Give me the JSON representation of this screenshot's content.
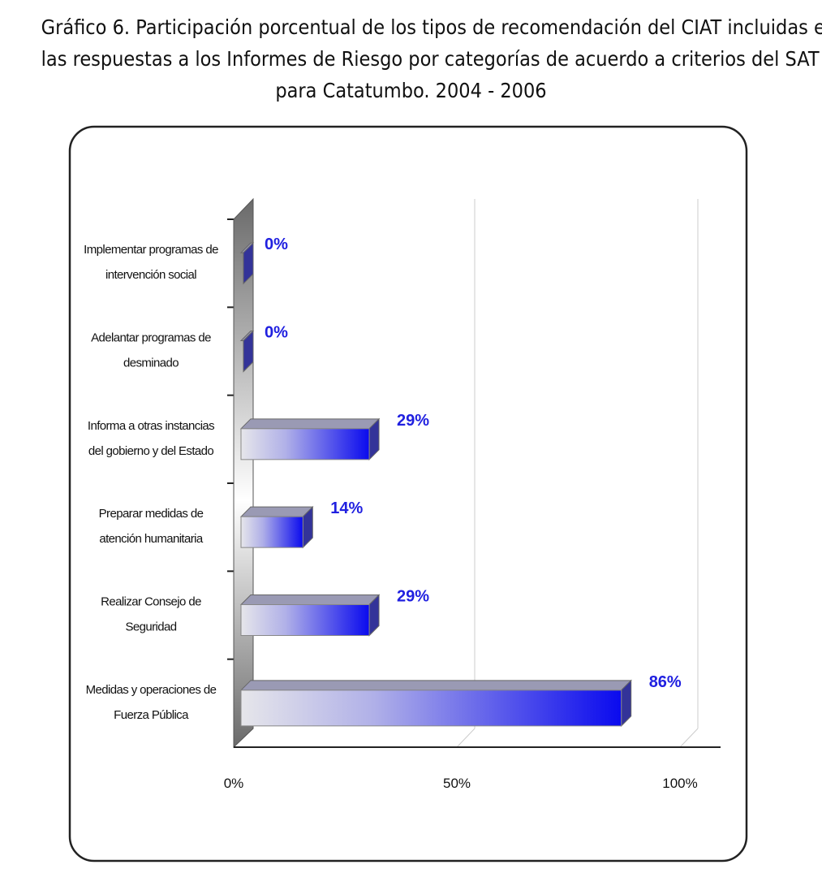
{
  "chart_data": {
    "type": "bar",
    "orientation": "horizontal",
    "title_lines": [
      "Gráfico 6. Participación porcentual de los tipos de recomendación del CIAT incluidas en",
      "las respuestas a los Informes de Riesgo por categorías de acuerdo a criterios del SAT",
      "para Catatumbo.  2004  - 2006"
    ],
    "categories": [
      [
        "Implementar programas de",
        "intervención social"
      ],
      [
        "Adelantar programas de",
        "desminado"
      ],
      [
        "Informa a otras instancias",
        "del gobierno y del Estado"
      ],
      [
        "Preparar medidas de",
        "atención humanitaria"
      ],
      [
        "Realizar Consejo de",
        "Seguridad"
      ],
      [
        "Medidas y operaciones de",
        "Fuerza Pública"
      ]
    ],
    "values": [
      0,
      0,
      29,
      14,
      29,
      86
    ],
    "data_labels": [
      "0%",
      "0%",
      "29%",
      "14%",
      "29%",
      "86%"
    ],
    "xticks": [
      "0%",
      "50%",
      "100%"
    ],
    "xlim": [
      0,
      100
    ],
    "grid": true,
    "colors": {
      "bar_dark": "#0a0aee",
      "bar_light": "#e6e6ea",
      "label": "#2020e0"
    }
  }
}
